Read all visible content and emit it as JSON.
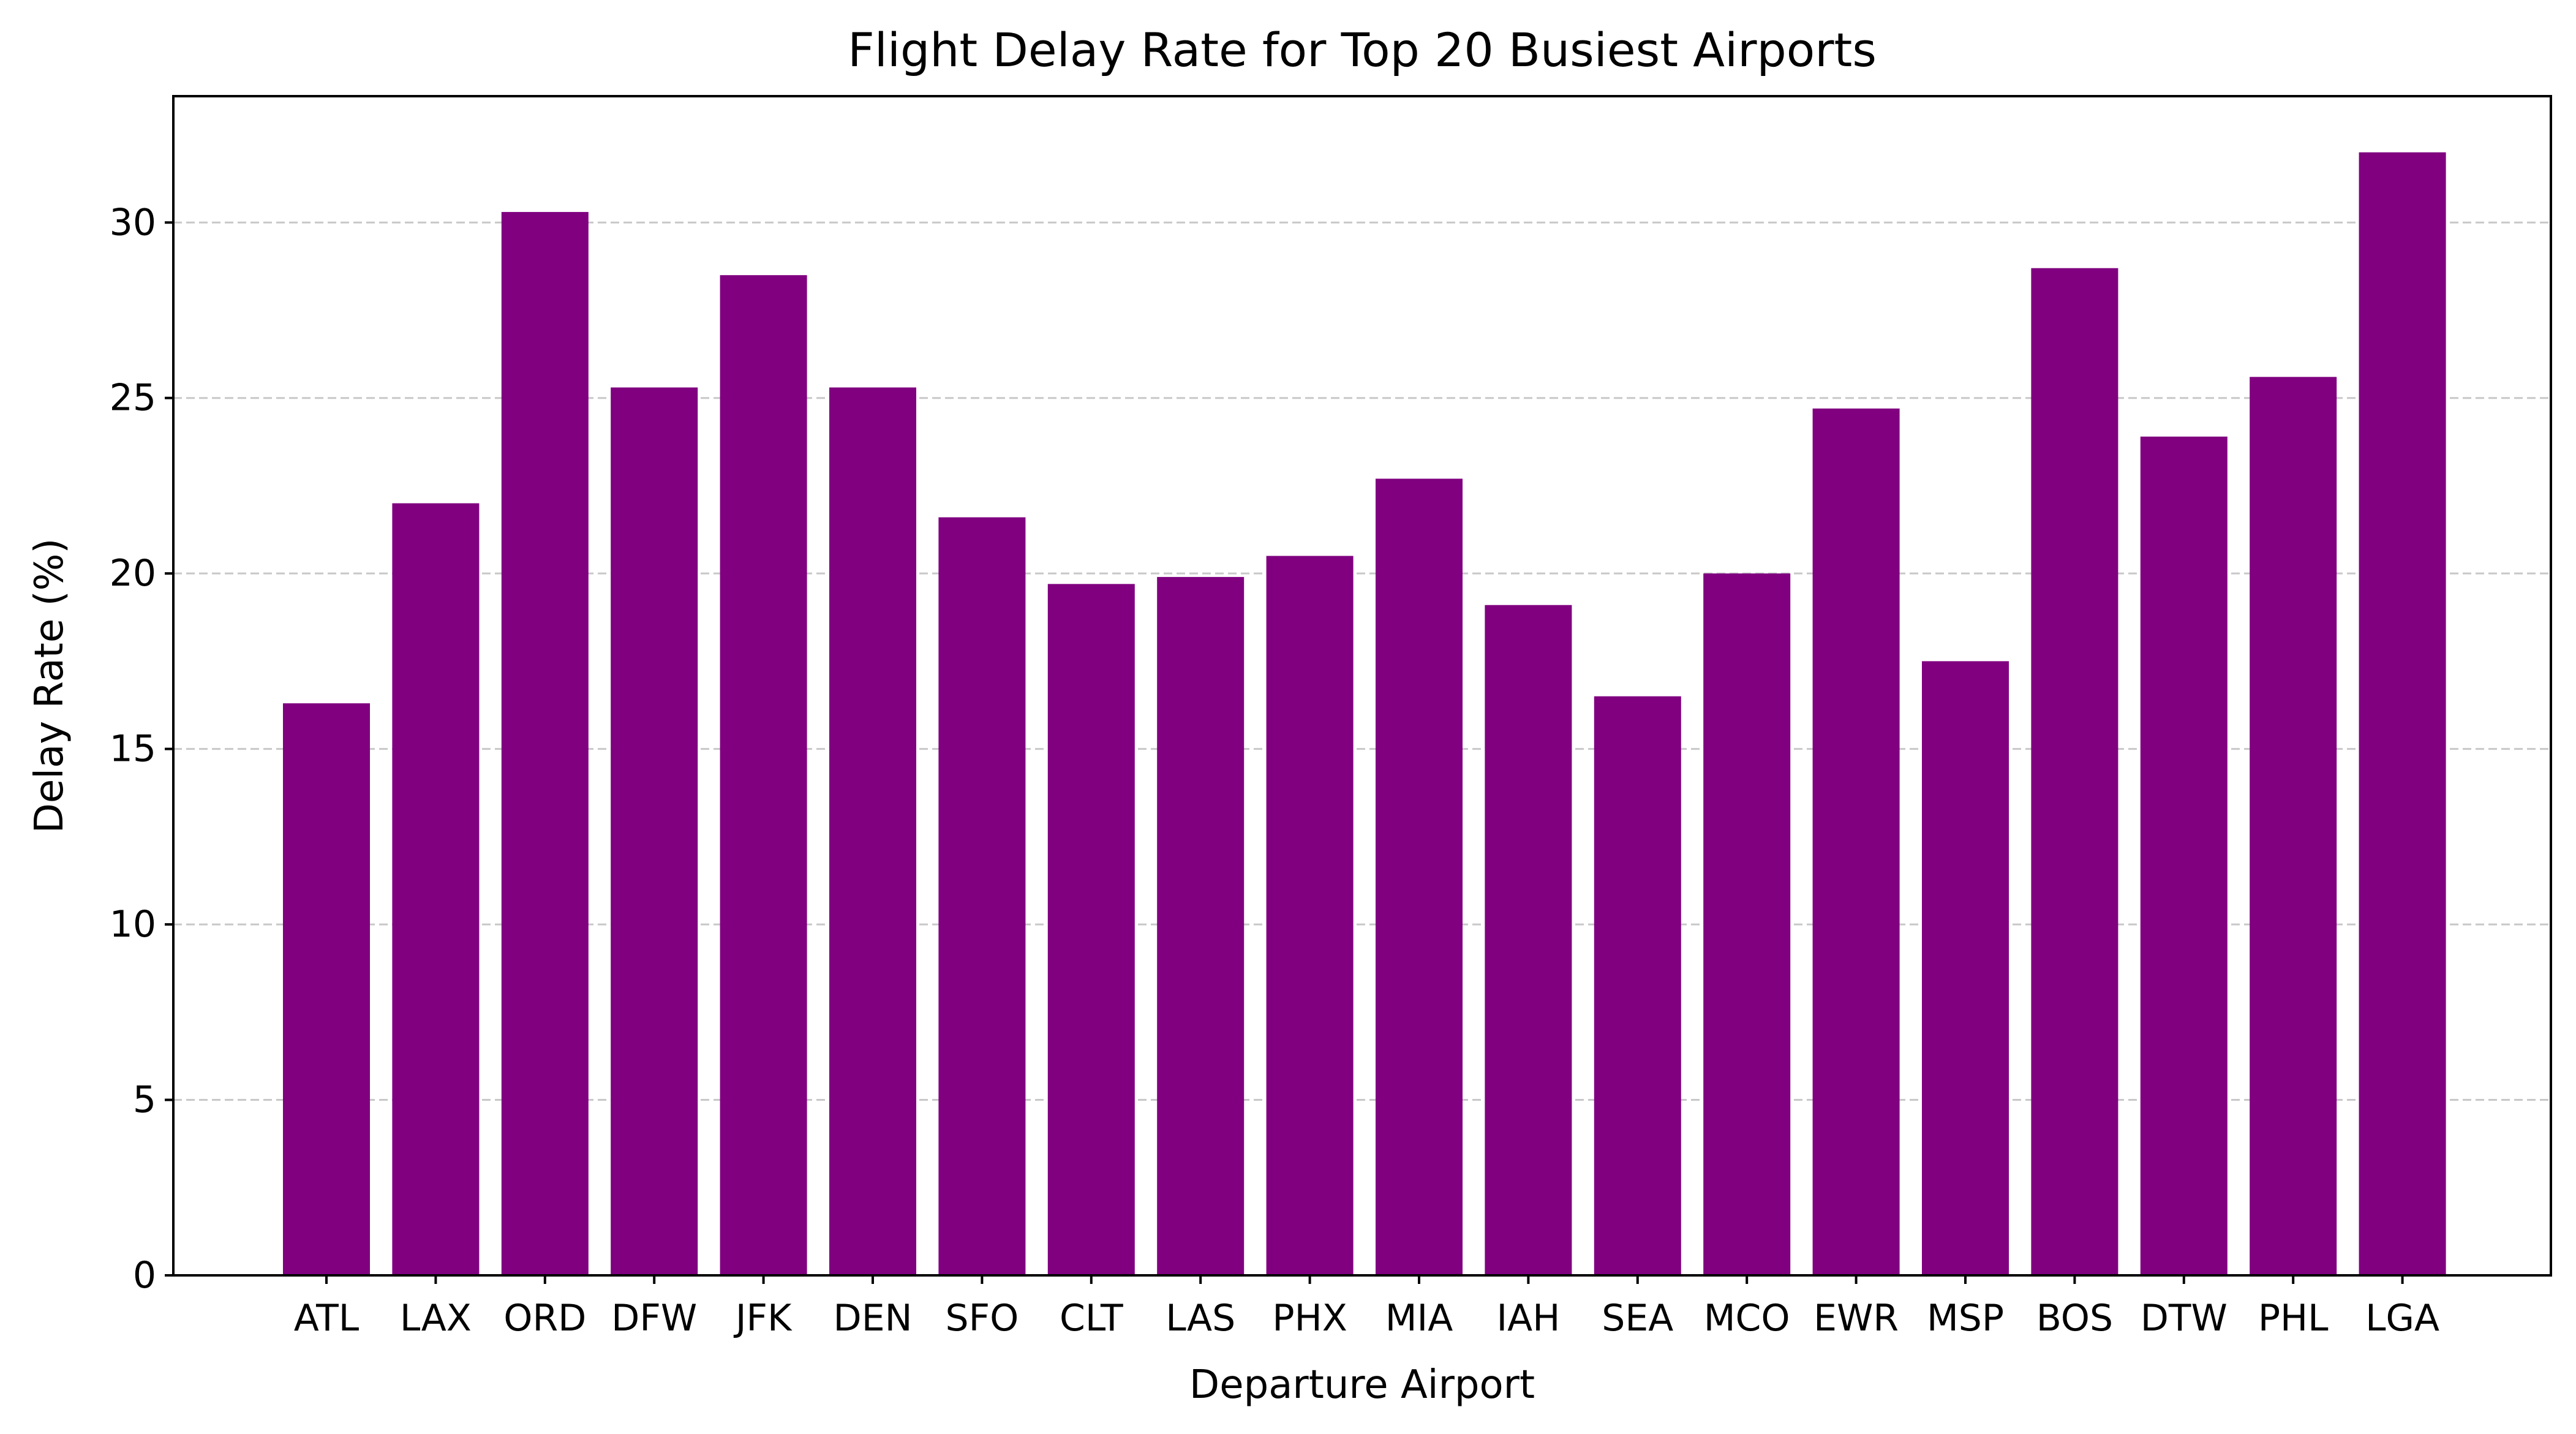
{
  "chart_data": {
    "type": "bar",
    "title": "Flight Delay Rate for Top 20 Busiest Airports",
    "xlabel": "Departure Airport",
    "ylabel": "Delay Rate (%)",
    "categories": [
      "ATL",
      "LAX",
      "ORD",
      "DFW",
      "JFK",
      "DEN",
      "SFO",
      "CLT",
      "LAS",
      "PHX",
      "MIA",
      "IAH",
      "SEA",
      "MCO",
      "EWR",
      "MSP",
      "BOS",
      "DTW",
      "PHL",
      "LGA"
    ],
    "values": [
      16.3,
      22.0,
      30.3,
      25.3,
      28.5,
      25.3,
      21.6,
      19.7,
      19.9,
      20.5,
      22.7,
      19.1,
      16.5,
      20.0,
      24.7,
      17.5,
      28.7,
      23.9,
      25.6,
      32.0
    ],
    "ylim": [
      0,
      33.6
    ],
    "yticks": [
      0,
      5,
      10,
      15,
      20,
      25,
      30
    ],
    "grid": "y-dashed",
    "bar_color": "#800080",
    "grid_color": "#c8c8c8"
  }
}
